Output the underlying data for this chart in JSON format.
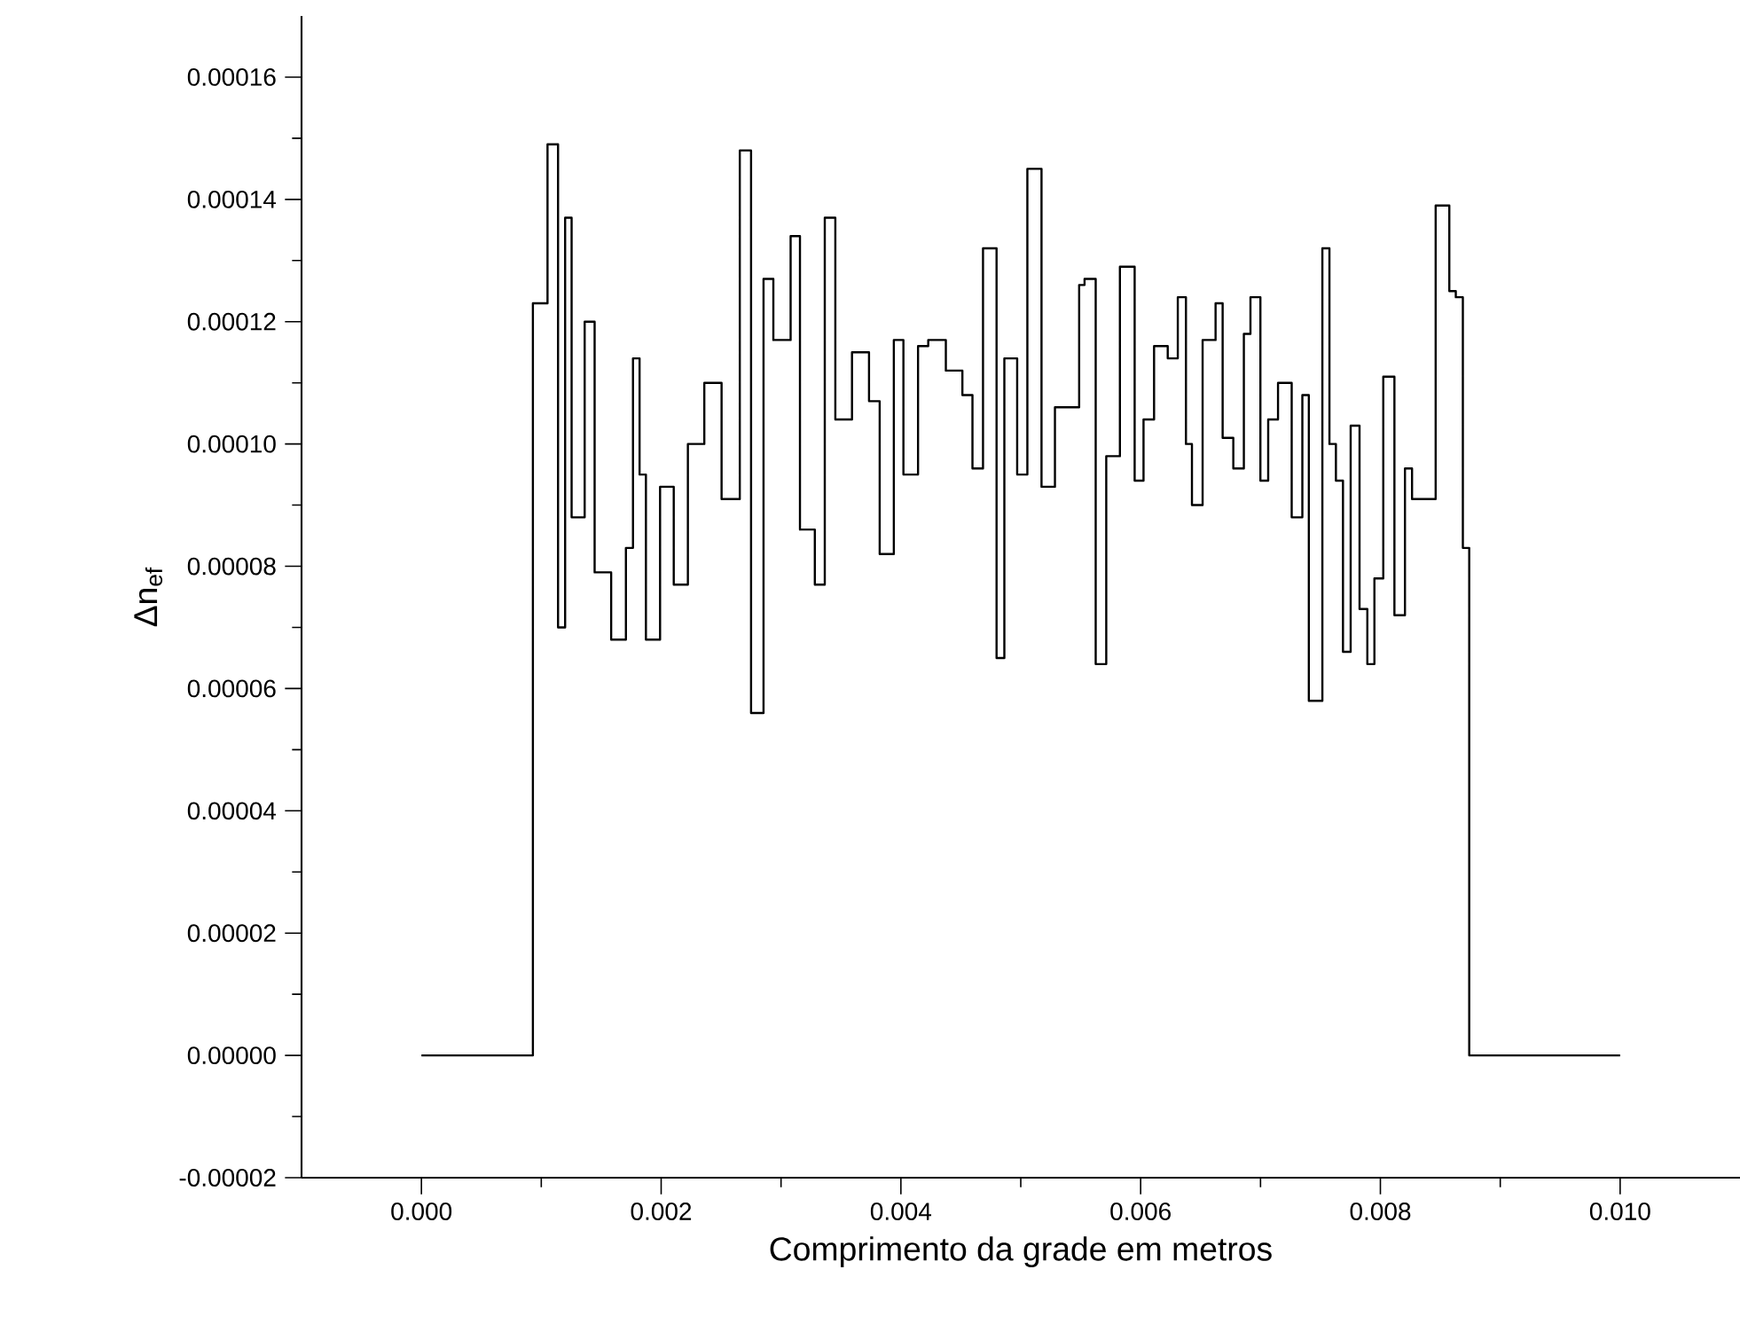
{
  "chart_data": {
    "type": "step",
    "xlabel": "Comprimento da grade em metros",
    "ylabel": "Δn$_{ef}$",
    "x": [
      0,
      0.00093,
      0.001052,
      0.00114,
      0.001199,
      0.001253,
      0.001362,
      0.001445,
      0.001583,
      0.001706,
      0.001765,
      0.00182,
      0.001873,
      0.001991,
      0.002105,
      0.002223,
      0.00236,
      0.002504,
      0.002656,
      0.00275,
      0.002854,
      0.002936,
      0.00308,
      0.003158,
      0.003282,
      0.003365,
      0.003453,
      0.003592,
      0.003734,
      0.003823,
      0.003941,
      0.004021,
      0.004143,
      0.004228,
      0.004375,
      0.004513,
      0.004597,
      0.004685,
      0.004798,
      0.004863,
      0.00497,
      0.005055,
      0.005173,
      0.005285,
      0.005487,
      0.005532,
      0.005625,
      0.005713,
      0.005827,
      0.00595,
      0.006024,
      0.006112,
      0.006226,
      0.00631,
      0.006378,
      0.006428,
      0.006517,
      0.006625,
      0.006684,
      0.006773,
      0.006861,
      0.006916,
      0.006999,
      0.007064,
      0.007146,
      0.00726,
      0.007349,
      0.007403,
      0.007516,
      0.007575,
      0.007629,
      0.007688,
      0.007752,
      0.007826,
      0.007891,
      0.00795,
      0.008024,
      0.008117,
      0.008205,
      0.008264,
      0.008461,
      0.008575,
      0.008629,
      0.008688,
      0.008741,
      0.01
    ],
    "values": [
      0,
      0.000123,
      0.000149,
      7e-05,
      0.000137,
      8.8e-05,
      0.00012,
      7.9e-05,
      6.8e-05,
      8.3e-05,
      0.000114,
      9.5e-05,
      6.8e-05,
      9.3e-05,
      7.7e-05,
      0.0001,
      0.00011,
      9.1e-05,
      0.000148,
      5.6e-05,
      0.000127,
      0.000117,
      0.000134,
      8.6e-05,
      7.7e-05,
      0.000137,
      0.000104,
      0.000115,
      0.000107,
      8.2e-05,
      0.000117,
      9.5e-05,
      0.000116,
      0.000117,
      0.000112,
      0.000108,
      9.6e-05,
      0.000132,
      6.5e-05,
      0.000114,
      9.5e-05,
      0.000145,
      9.3e-05,
      0.000106,
      0.000126,
      0.000127,
      6.4e-05,
      9.8e-05,
      0.000129,
      9.4e-05,
      0.000104,
      0.000116,
      0.000114,
      0.000124,
      0.0001,
      9e-05,
      0.000117,
      0.000123,
      0.000101,
      9.6e-05,
      0.000118,
      0.000124,
      9.4e-05,
      0.000104,
      0.00011,
      8.8e-05,
      0.000108,
      5.8e-05,
      0.000132,
      0.0001,
      9.4e-05,
      6.6e-05,
      0.000103,
      7.3e-05,
      6.4e-05,
      7.8e-05,
      0.000111,
      7.2e-05,
      9.6e-05,
      9.1e-05,
      0.000139,
      0.000125,
      0.000124,
      8.3e-05,
      0,
      0
    ],
    "color": "#000000",
    "xlim": [
      -0.001,
      0.011
    ],
    "ylim": [
      -2e-05,
      0.00017
    ],
    "xticks": [
      {
        "value": 0,
        "label": "0.000"
      },
      {
        "value": 0.002,
        "label": "0.002"
      },
      {
        "value": 0.004,
        "label": "0.004"
      },
      {
        "value": 0.006,
        "label": "0.006"
      },
      {
        "value": 0.008,
        "label": "0.008"
      },
      {
        "value": 0.01,
        "label": "0.010"
      }
    ],
    "yticks": [
      {
        "value": -2e-05,
        "label": "-0.00002"
      },
      {
        "value": 0,
        "label": "0.00000"
      },
      {
        "value": 2e-05,
        "label": "0.00002"
      },
      {
        "value": 4e-05,
        "label": "0.00004"
      },
      {
        "value": 6e-05,
        "label": "0.00006"
      },
      {
        "value": 8e-05,
        "label": "0.00008"
      },
      {
        "value": 0.0001,
        "label": "0.00010"
      },
      {
        "value": 0.00012,
        "label": "0.00012"
      },
      {
        "value": 0.00014,
        "label": "0.00014"
      },
      {
        "value": 0.00016,
        "label": "0.00016"
      }
    ],
    "grid": false,
    "marker": "none",
    "line_style": "solid"
  }
}
